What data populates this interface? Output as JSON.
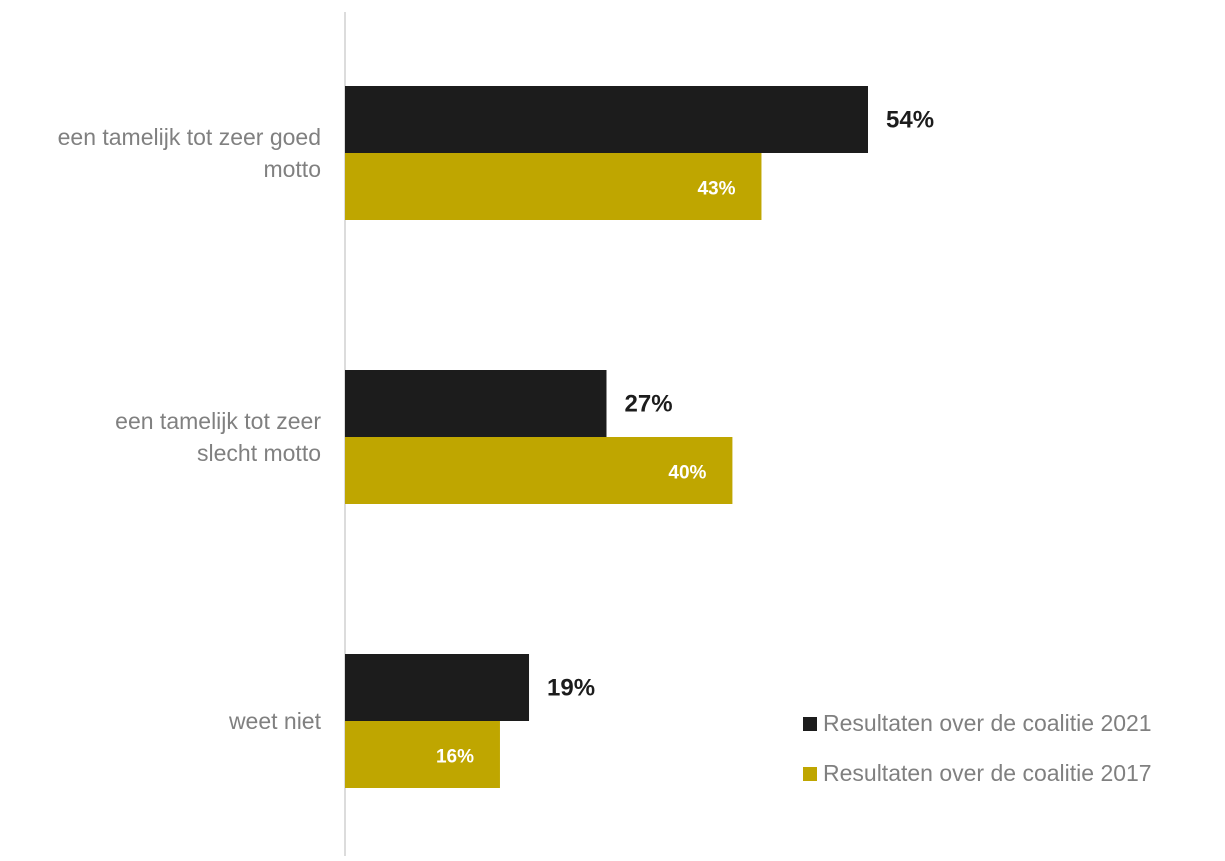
{
  "chart_data": {
    "type": "bar",
    "orientation": "horizontal",
    "categories": [
      [
        "een tamelijk tot zeer goed",
        "motto"
      ],
      [
        "een tamelijk tot zeer",
        "slecht motto"
      ],
      [
        "weet niet"
      ]
    ],
    "series": [
      {
        "name": "Resultaten over de coalitie 2021",
        "values": [
          54,
          27,
          19
        ],
        "labels": [
          "54%",
          "27%",
          "19%"
        ],
        "color": "#1c1c1c"
      },
      {
        "name": "Resultaten over de coalitie 2017",
        "values": [
          43,
          40,
          16
        ],
        "labels": [
          "43%",
          "40%",
          "16%"
        ],
        "color": "#bfa600"
      }
    ],
    "value_unit": "%",
    "xlim": [
      0,
      100
    ],
    "grid": false,
    "legend_position": "bottom-right"
  }
}
